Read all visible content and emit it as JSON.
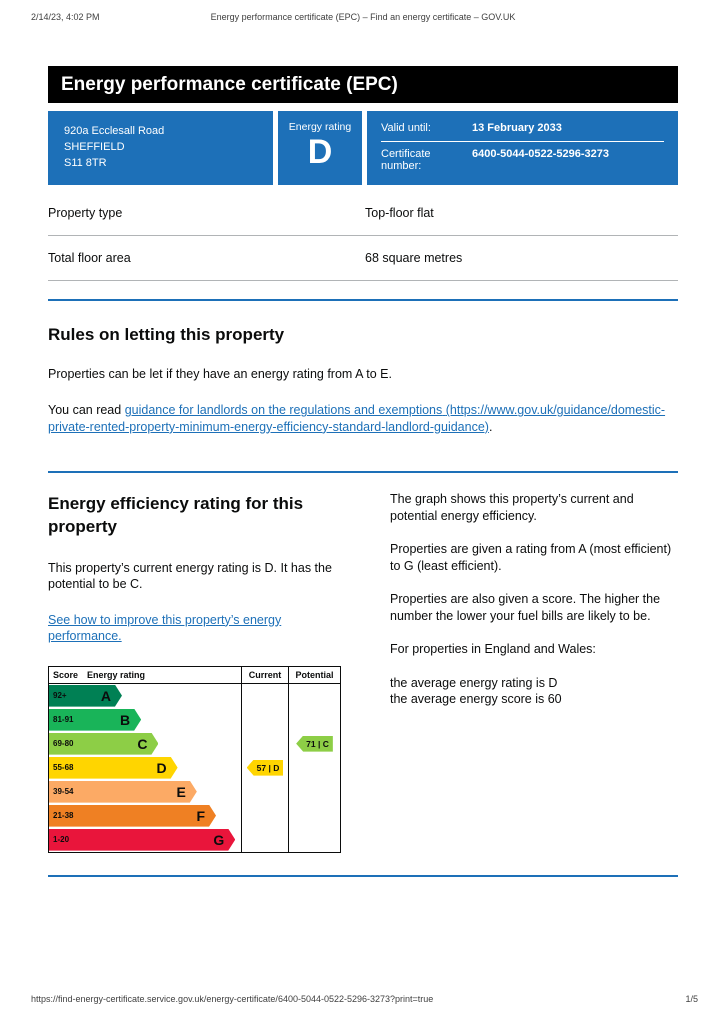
{
  "print_header": {
    "datetime": "2/14/23, 4:02 PM",
    "title": "Energy performance certificate (EPC) – Find an energy certificate – GOV.UK"
  },
  "print_footer": {
    "url": "https://find-energy-certificate.service.gov.uk/energy-certificate/6400-5044-0522-5296-3273?print=true",
    "page": "1/5"
  },
  "banner": {
    "title": "Energy performance certificate (EPC)"
  },
  "summary": {
    "address_lines": [
      "920a Ecclesall Road",
      "SHEFFIELD",
      "S11 8TR"
    ],
    "energy_rating_label": "Energy rating",
    "energy_rating": "D",
    "valid_until_label": "Valid until:",
    "valid_until": "13 February 2033",
    "certificate_number_label": "Certificate number:",
    "certificate_number": "6400-5044-0522-5296-3273"
  },
  "properties": [
    {
      "label": "Property type",
      "value": "Top-floor flat"
    },
    {
      "label": "Total floor area",
      "value": "68 square metres"
    }
  ],
  "rules_section": {
    "heading": "Rules on letting this property",
    "para1": "Properties can be let if they have an energy rating from A to E.",
    "para2_prefix": "You can read ",
    "link_text": "guidance for landlords on the regulations and exemptions",
    "link_url_text": "(https://www.gov.uk/guidance/domestic-private-rented-property-minimum-energy-efficiency-standard-landlord-guidance)",
    "para2_suffix": "."
  },
  "rating_section": {
    "heading": "Energy efficiency rating for this property",
    "para1": "This property’s current energy rating is D. It has the potential to be C.",
    "improve_link": "See how to improve this property’s energy performance.",
    "right_paras": [
      "The graph shows this property’s current and potential energy efficiency.",
      "Properties are given a rating from A (most efficient) to G (least efficient).",
      "Properties are also given a score. The higher the number the lower your fuel bills are likely to be.",
      "For properties in England and Wales:"
    ],
    "average_lines": [
      "the average energy rating is D",
      "the average energy score is 60"
    ]
  },
  "chart_data": {
    "type": "bar",
    "variant": "epc-energy-rating-chart",
    "columns": [
      "Score",
      "Energy rating",
      "Current",
      "Potential"
    ],
    "bands": [
      {
        "score": "92+",
        "letter": "A",
        "color": "#008054",
        "width_pct": 38
      },
      {
        "score": "81-91",
        "letter": "B",
        "color": "#19b459",
        "width_pct": 48
      },
      {
        "score": "69-80",
        "letter": "C",
        "color": "#8dce46",
        "width_pct": 57
      },
      {
        "score": "55-68",
        "letter": "D",
        "color": "#ffd500",
        "width_pct": 67
      },
      {
        "score": "39-54",
        "letter": "E",
        "color": "#fcaa65",
        "width_pct": 77
      },
      {
        "score": "21-38",
        "letter": "F",
        "color": "#ef8023",
        "width_pct": 87
      },
      {
        "score": "1-20",
        "letter": "G",
        "color": "#e9153b",
        "width_pct": 97
      }
    ],
    "current": {
      "score": 57,
      "letter": "D",
      "band_index": 3,
      "color": "#ffd500",
      "label": "57 | D"
    },
    "potential": {
      "score": 71,
      "letter": "C",
      "band_index": 2,
      "color": "#8dce46",
      "label": "71 | C"
    }
  },
  "colors": {
    "govuk_blue": "#1d70b8",
    "banner_black": "#000000",
    "border_grey": "#b1b4b6",
    "text_black": "#0b0c0c"
  }
}
